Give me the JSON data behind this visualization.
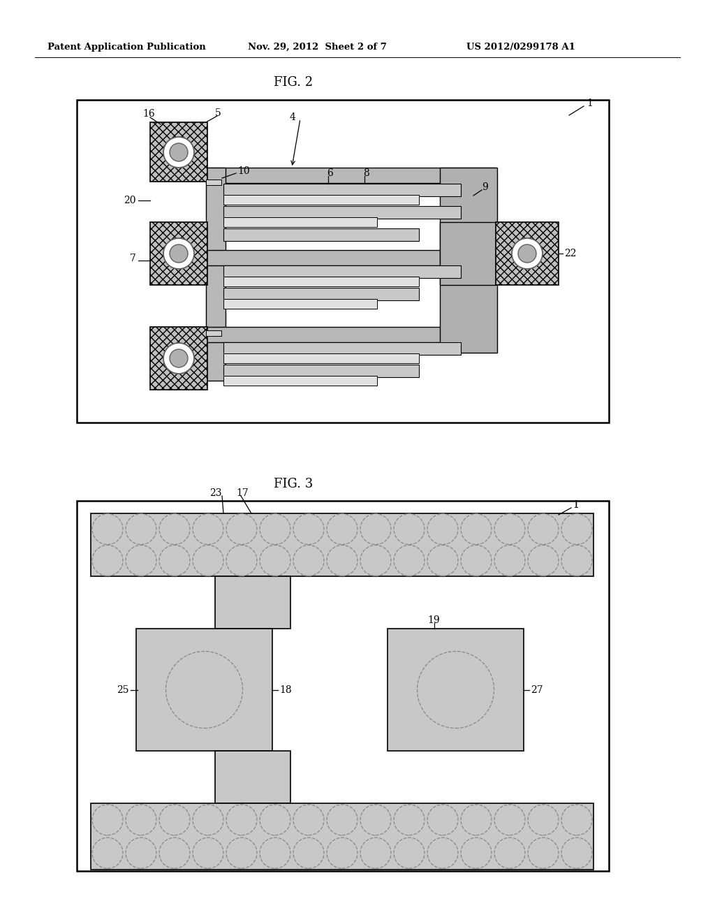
{
  "bg_color": "#ffffff",
  "header_text1": "Patent Application Publication",
  "header_text2": "Nov. 29, 2012  Sheet 2 of 7",
  "header_text3": "US 2012/0299178 A1",
  "fig2_title": "FIG. 2",
  "fig3_title": "FIG. 3",
  "gray_pad": "#c0c0c0",
  "gray_bus": "#b8b8b8",
  "gray_finger_dark": "#c8c8c8",
  "gray_finger_light": "#e0e0e0",
  "gray_right_bus": "#b0b0b0",
  "gray_fig3": "#c8c8c8",
  "line_color": "#000000"
}
